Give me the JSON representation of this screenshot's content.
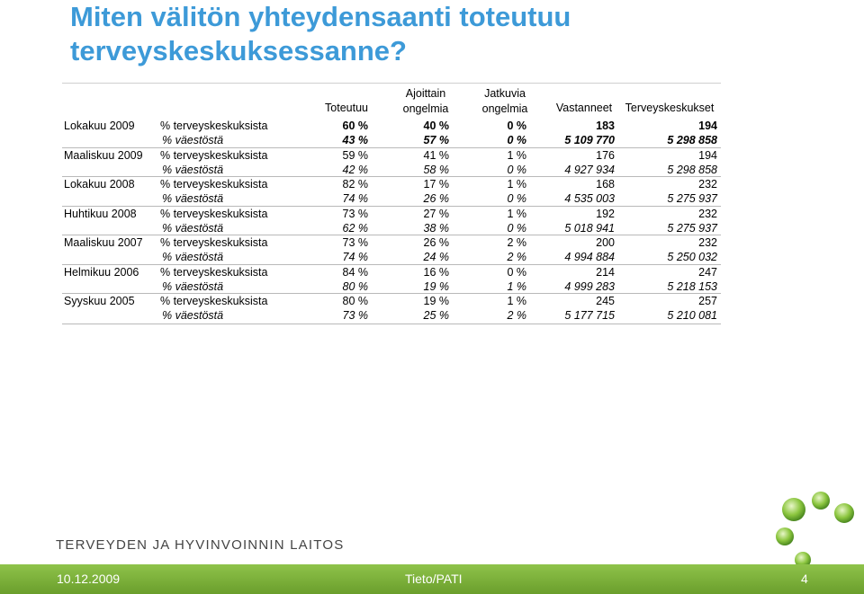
{
  "title": "Miten välitön yhteydensaanti toteutuu terveyskeskuksessanne?",
  "columns": {
    "toteutuu": "Toteutuu",
    "ajoittain_l1": "Ajoittain",
    "ajoittain_l2": "ongelmia",
    "jatkuvia_l1": "Jatkuvia",
    "jatkuvia_l2": "ongelmia",
    "vastanneet": "Vastanneet",
    "terveyskeskukset": "Terveyskeskukset"
  },
  "rows": [
    {
      "period": "Lokakuu 2009",
      "tk": {
        "label": "% terveyskeskuksista",
        "v": [
          "60 %",
          "40 %",
          "0 %",
          "183",
          "194"
        ]
      },
      "pop": {
        "label": "% väestöstä",
        "v": [
          "43 %",
          "57 %",
          "0 %",
          "5 109 770",
          "5 298 858"
        ]
      }
    },
    {
      "period": "Maaliskuu 2009",
      "tk": {
        "label": "% terveyskeskuksista",
        "v": [
          "59 %",
          "41 %",
          "1 %",
          "176",
          "194"
        ]
      },
      "pop": {
        "label": "% väestöstä",
        "v": [
          "42 %",
          "58 %",
          "0 %",
          "4 927 934",
          "5 298 858"
        ]
      }
    },
    {
      "period": "Lokakuu 2008",
      "tk": {
        "label": "% terveyskeskuksista",
        "v": [
          "82 %",
          "17 %",
          "1 %",
          "168",
          "232"
        ]
      },
      "pop": {
        "label": "% väestöstä",
        "v": [
          "74 %",
          "26 %",
          "0 %",
          "4 535 003",
          "5 275 937"
        ]
      }
    },
    {
      "period": "Huhtikuu 2008",
      "tk": {
        "label": "% terveyskeskuksista",
        "v": [
          "73 %",
          "27 %",
          "1 %",
          "192",
          "232"
        ]
      },
      "pop": {
        "label": "% väestöstä",
        "v": [
          "62 %",
          "38 %",
          "0 %",
          "5 018 941",
          "5 275 937"
        ]
      }
    },
    {
      "period": "Maaliskuu 2007",
      "tk": {
        "label": "% terveyskeskuksista",
        "v": [
          "73 %",
          "26 %",
          "2 %",
          "200",
          "232"
        ]
      },
      "pop": {
        "label": "% väestöstä",
        "v": [
          "74 %",
          "24 %",
          "2 %",
          "4 994 884",
          "5 250 032"
        ]
      }
    },
    {
      "period": "Helmikuu 2006",
      "tk": {
        "label": "% terveyskeskuksista",
        "v": [
          "84 %",
          "16 %",
          "0 %",
          "214",
          "247"
        ]
      },
      "pop": {
        "label": "% väestöstä",
        "v": [
          "80 %",
          "19 %",
          "1 %",
          "4 999 283",
          "5 218 153"
        ]
      }
    },
    {
      "period": "Syyskuu 2005",
      "tk": {
        "label": "% terveyskeskuksista",
        "v": [
          "80 %",
          "19 %",
          "1 %",
          "245",
          "257"
        ]
      },
      "pop": {
        "label": "% väestöstä",
        "v": [
          "73 %",
          "25 %",
          "2 %",
          "5 177 715",
          "5 210 081"
        ]
      }
    }
  ],
  "organization": "TERVEYDEN JA HYVINVOINNIN LAITOS",
  "footer": {
    "date": "10.12.2009",
    "center": "Tieto/PATI",
    "page": "4"
  },
  "colors": {
    "title": "#3d9ad8",
    "footer": "#7cb03a"
  }
}
